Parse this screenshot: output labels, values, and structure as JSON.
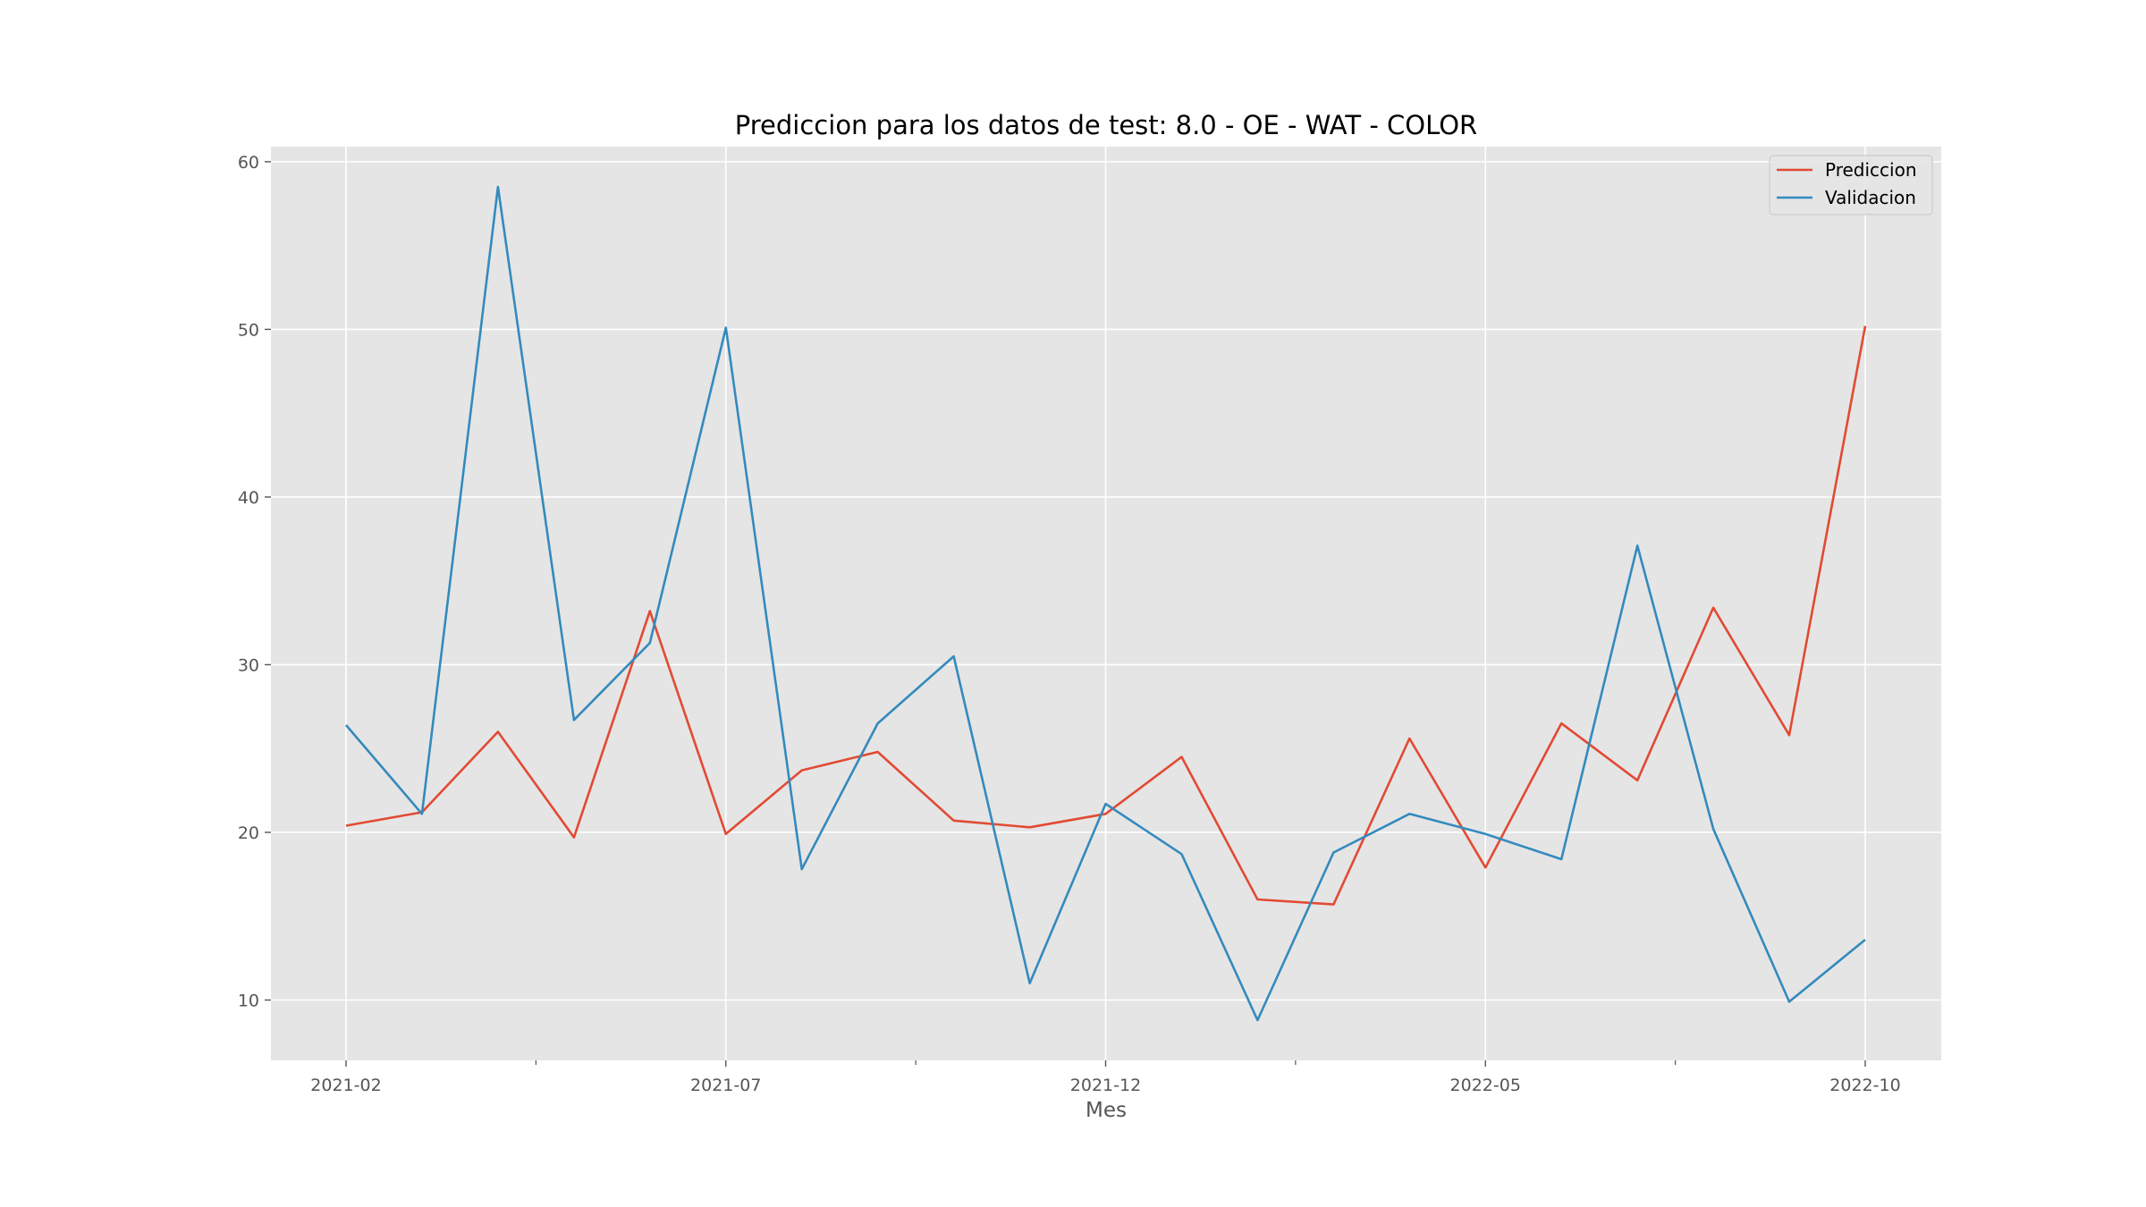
{
  "chart_data": {
    "type": "line",
    "title": "Prediccion para los datos de test: 8.0 - OE - WAT - COLOR",
    "xlabel": "Mes",
    "ylabel": "",
    "x": [
      "2021-02",
      "2021-03",
      "2021-04",
      "2021-05",
      "2021-06",
      "2021-07",
      "2021-08",
      "2021-09",
      "2021-10",
      "2021-11",
      "2021-12",
      "2022-01",
      "2022-02",
      "2022-03",
      "2022-04",
      "2022-05",
      "2022-06",
      "2022-07",
      "2022-08",
      "2022-09",
      "2022-10"
    ],
    "x_tick_labels": [
      "2021-02",
      "",
      "2021-07",
      "",
      "2021-12",
      "",
      "2022-05",
      "",
      "2022-10"
    ],
    "y_ticks": [
      10,
      20,
      30,
      40,
      50,
      60
    ],
    "ylim": [
      6.4,
      60.9
    ],
    "grid": true,
    "legend_position": "top-right",
    "series": [
      {
        "name": "Prediccion",
        "color": "#E24A33",
        "values": [
          20.4,
          21.2,
          26.0,
          19.7,
          33.2,
          19.9,
          23.7,
          24.8,
          20.7,
          20.3,
          21.1,
          24.5,
          16.0,
          15.7,
          25.6,
          17.9,
          26.5,
          23.1,
          33.4,
          25.8,
          50.2
        ]
      },
      {
        "name": "Validacion",
        "color": "#348ABD",
        "values": [
          26.4,
          21.1,
          58.5,
          26.7,
          31.3,
          50.1,
          17.8,
          26.5,
          30.5,
          11.0,
          21.7,
          18.7,
          8.8,
          18.8,
          21.1,
          19.9,
          18.4,
          37.1,
          20.2,
          9.9,
          13.6
        ]
      }
    ]
  }
}
